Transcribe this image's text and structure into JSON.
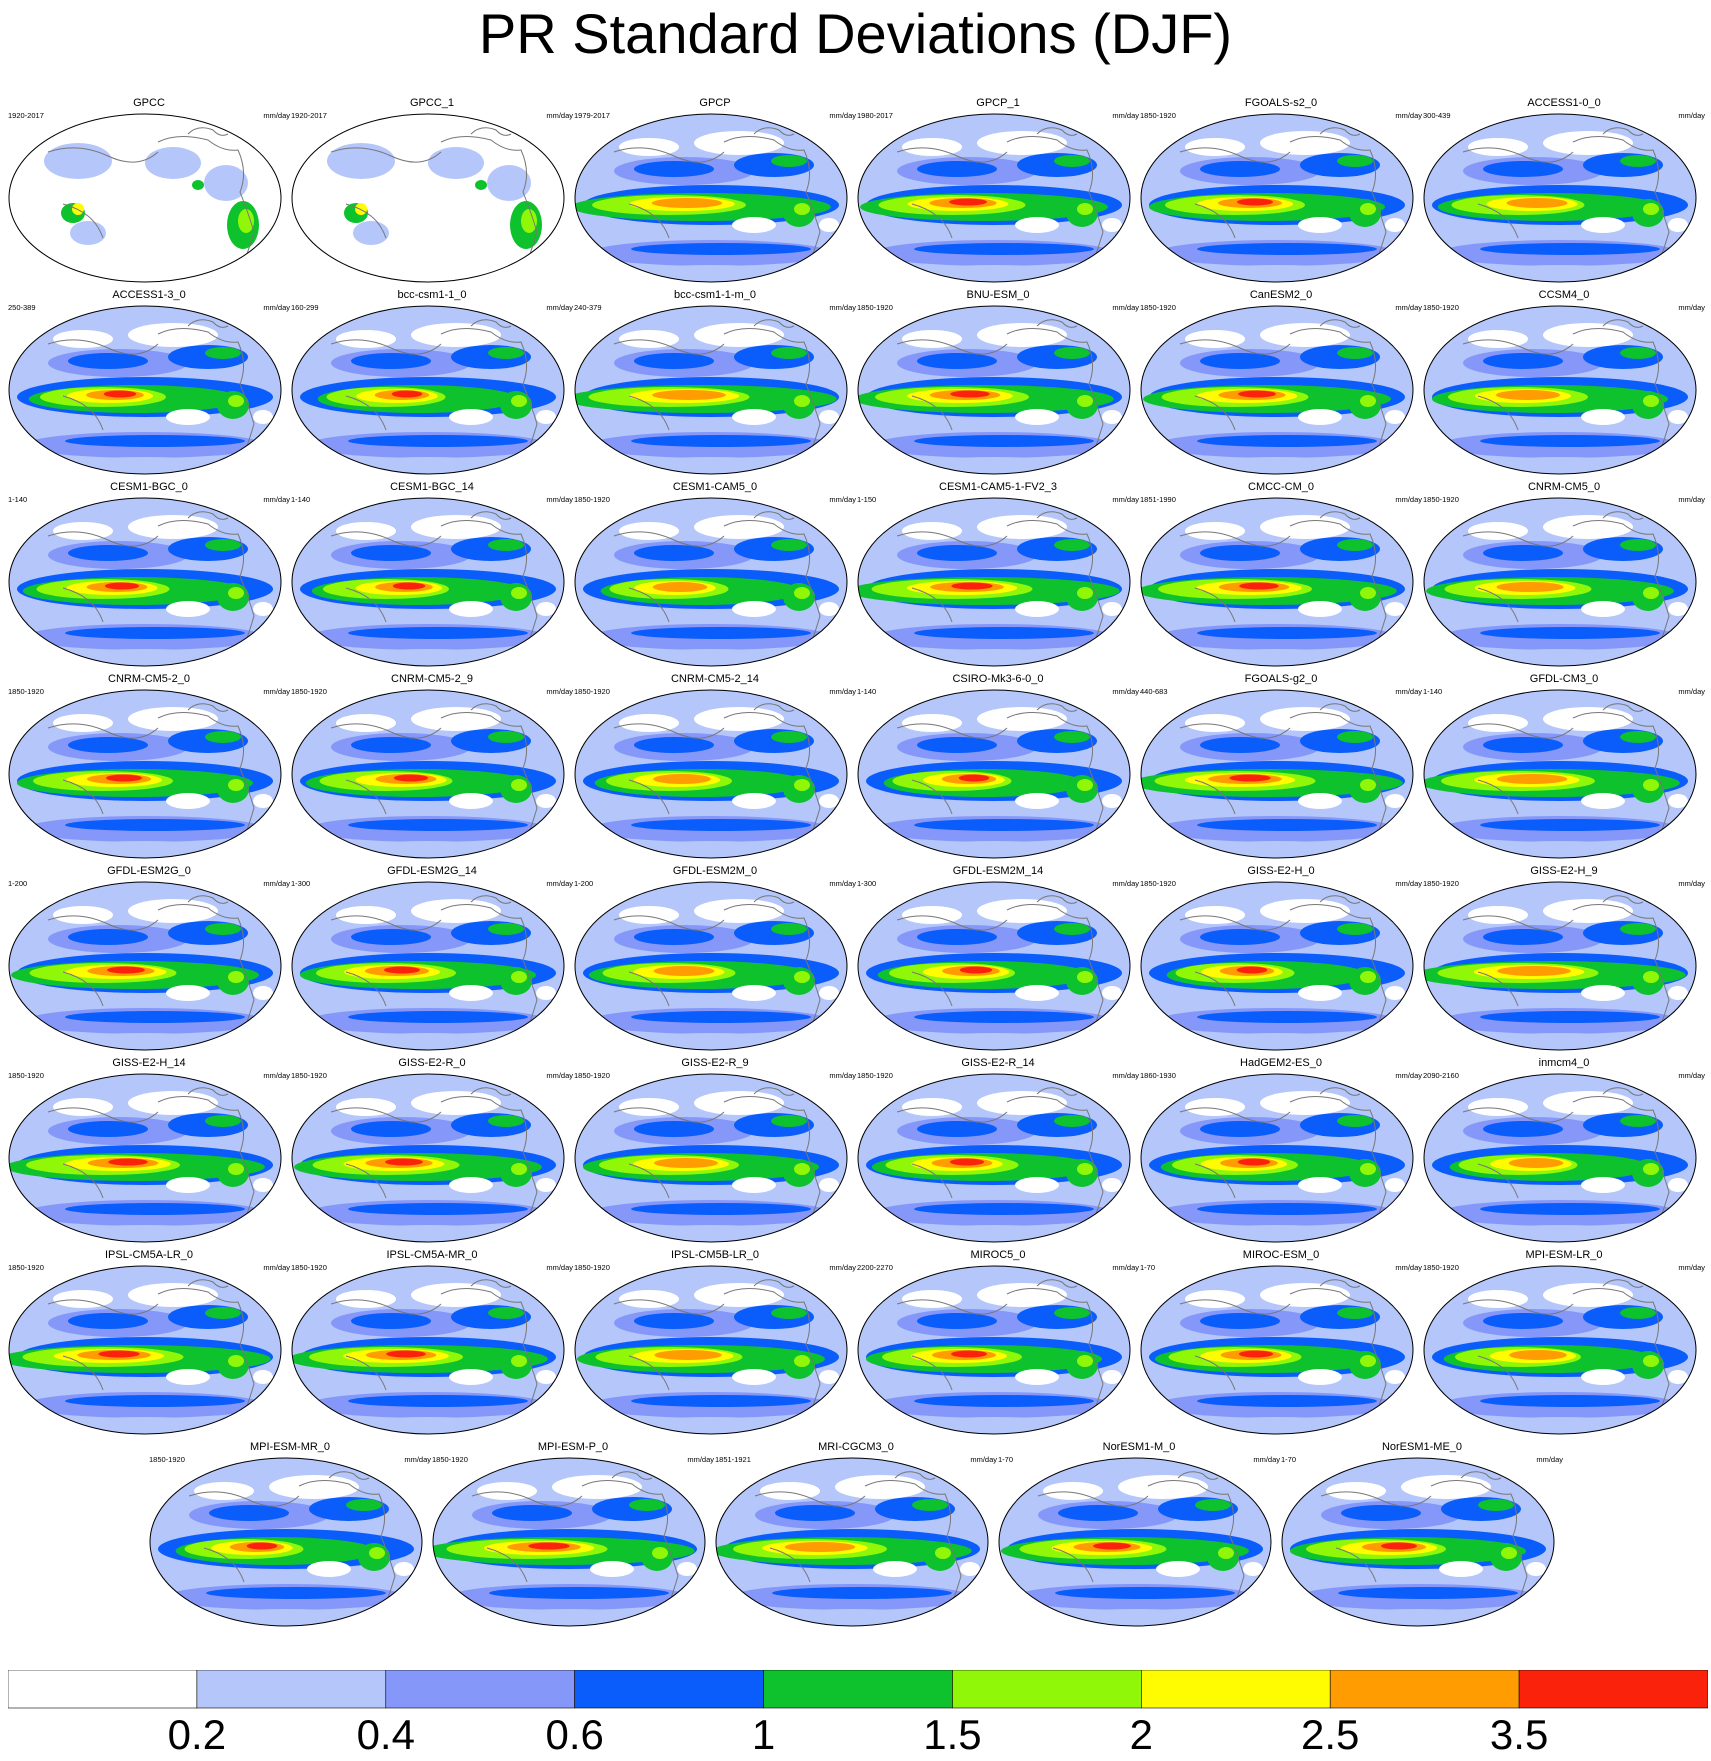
{
  "title": "PR Standard Deviations (DJF)",
  "units": "mm/day",
  "panels": [
    {
      "name": "GPCC",
      "years": "1920-2017"
    },
    {
      "name": "GPCC_1",
      "years": "1920-2017"
    },
    {
      "name": "GPCP",
      "years": "1979-2017"
    },
    {
      "name": "GPCP_1",
      "years": "1980-2017"
    },
    {
      "name": "FGOALS-s2_0",
      "years": "1850-1920"
    },
    {
      "name": "ACCESS1-0_0",
      "years": "300-439"
    },
    {
      "name": "ACCESS1-3_0",
      "years": "250-389"
    },
    {
      "name": "bcc-csm1-1_0",
      "years": "160-299"
    },
    {
      "name": "bcc-csm1-1-m_0",
      "years": "240-379"
    },
    {
      "name": "BNU-ESM_0",
      "years": "1850-1920"
    },
    {
      "name": "CanESM2_0",
      "years": "1850-1920"
    },
    {
      "name": "CCSM4_0",
      "years": "1850-1920"
    },
    {
      "name": "CESM1-BGC_0",
      "years": "1-140"
    },
    {
      "name": "CESM1-BGC_14",
      "years": "1-140"
    },
    {
      "name": "CESM1-CAM5_0",
      "years": "1850-1920"
    },
    {
      "name": "CESM1-CAM5-1-FV2_3",
      "years": "1-150"
    },
    {
      "name": "CMCC-CM_0",
      "years": "1851-1990"
    },
    {
      "name": "CNRM-CM5_0",
      "years": "1850-1920"
    },
    {
      "name": "CNRM-CM5-2_0",
      "years": "1850-1920"
    },
    {
      "name": "CNRM-CM5-2_9",
      "years": "1850-1920"
    },
    {
      "name": "CNRM-CM5-2_14",
      "years": "1850-1920"
    },
    {
      "name": "CSIRO-Mk3-6-0_0",
      "years": "1-140"
    },
    {
      "name": "FGOALS-g2_0",
      "years": "440-683"
    },
    {
      "name": "GFDL-CM3_0",
      "years": "1-140"
    },
    {
      "name": "GFDL-ESM2G_0",
      "years": "1-200"
    },
    {
      "name": "GFDL-ESM2G_14",
      "years": "1-300"
    },
    {
      "name": "GFDL-ESM2M_0",
      "years": "1-200"
    },
    {
      "name": "GFDL-ESM2M_14",
      "years": "1-300"
    },
    {
      "name": "GISS-E2-H_0",
      "years": "1850-1920"
    },
    {
      "name": "GISS-E2-H_9",
      "years": "1850-1920"
    },
    {
      "name": "GISS-E2-H_14",
      "years": "1850-1920"
    },
    {
      "name": "GISS-E2-R_0",
      "years": "1850-1920"
    },
    {
      "name": "GISS-E2-R_9",
      "years": "1850-1920"
    },
    {
      "name": "GISS-E2-R_14",
      "years": "1850-1920"
    },
    {
      "name": "HadGEM2-ES_0",
      "years": "1860-1930"
    },
    {
      "name": "inmcm4_0",
      "years": "2090-2160"
    },
    {
      "name": "IPSL-CM5A-LR_0",
      "years": "1850-1920"
    },
    {
      "name": "IPSL-CM5A-MR_0",
      "years": "1850-1920"
    },
    {
      "name": "IPSL-CM5B-LR_0",
      "years": "1850-1920"
    },
    {
      "name": "MIROC5_0",
      "years": "2200-2270"
    },
    {
      "name": "MIROC-ESM_0",
      "years": "1-70"
    },
    {
      "name": "MPI-ESM-LR_0",
      "years": "1850-1920"
    },
    {
      "name": "MPI-ESM-MR_0",
      "years": "1850-1920"
    },
    {
      "name": "MPI-ESM-P_0",
      "years": "1850-1920"
    },
    {
      "name": "MRI-CGCM3_0",
      "years": "1851-1921"
    },
    {
      "name": "NorESM1-M_0",
      "years": "1-70"
    },
    {
      "name": "NorESM1-ME_0",
      "years": "1-70"
    }
  ],
  "colorbar": {
    "colors": [
      "#ffffff",
      "#b4c6fa",
      "#8597f8",
      "#0a5dfa",
      "#0dc22c",
      "#90f709",
      "#fffb01",
      "#fe9c02",
      "#fa220a"
    ],
    "labels": [
      "0.2",
      "0.4",
      "0.6",
      "1",
      "1.5",
      "2",
      "2.5",
      "3.5"
    ]
  }
}
